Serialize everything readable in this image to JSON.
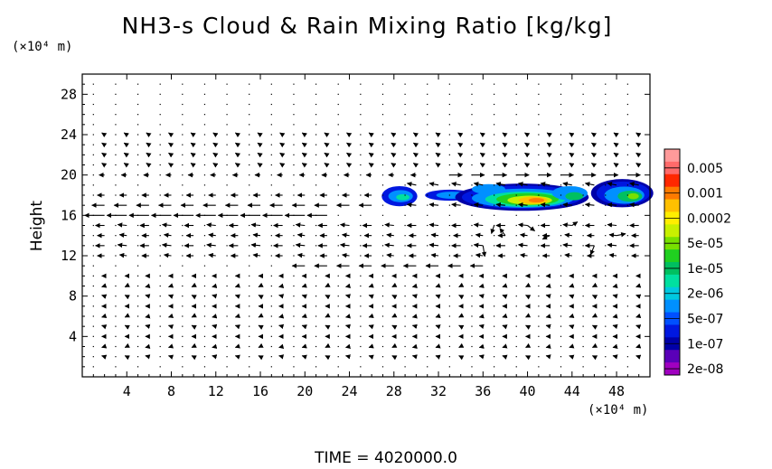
{
  "chart_data": {
    "type": "heatmap",
    "title": "NH3-s Cloud & Rain Mixing Ratio [kg/kg]",
    "ylabel": "Height",
    "y_unit": "(×10⁴ m)",
    "x_unit": "(×10⁴ m)",
    "xlim": [
      0,
      51
    ],
    "ylim": [
      0,
      30
    ],
    "x_ticks": [
      "4",
      "8",
      "12",
      "16",
      "20",
      "24",
      "28",
      "32",
      "36",
      "40",
      "44",
      "48"
    ],
    "y_ticks": [
      "4",
      "8",
      "12",
      "16",
      "20",
      "24",
      "28"
    ],
    "colorbar": {
      "labels": [
        "0.005",
        "0.001",
        "0.0002",
        "5e-05",
        "1e-05",
        "2e-06",
        "5e-07",
        "1e-07",
        "2e-08"
      ],
      "colors": [
        "#ff9a9a",
        "#ff6a6a",
        "#ff2800",
        "#ff7a00",
        "#ffc000",
        "#ffee00",
        "#c8f000",
        "#78e000",
        "#20d020",
        "#00c060",
        "#00e0a0",
        "#00c8e0",
        "#0090ff",
        "#0050ff",
        "#0018e0",
        "#0000a8",
        "#5a00b8",
        "#a000c0"
      ]
    },
    "cloud_regions": [
      {
        "x_range": [
          27,
          30
        ],
        "y_range": [
          16.9,
          18.9
        ],
        "max_level": "5e-07"
      },
      {
        "x_range": [
          31,
          35
        ],
        "y_range": [
          17.5,
          18.5
        ],
        "max_level": "5e-07"
      },
      {
        "x_range": [
          34,
          46
        ],
        "y_range": [
          16.5,
          19.2
        ],
        "max_level": "0.0002"
      },
      {
        "x_range": [
          46,
          51
        ],
        "y_range": [
          16.8,
          19.7
        ],
        "max_level": "1e-05"
      }
    ],
    "wind_bands": [
      {
        "y": 16,
        "x_range": [
          1,
          22
        ],
        "direction": "west",
        "speed": "strong"
      },
      {
        "y": 17,
        "x_range": [
          1,
          27
        ],
        "direction": "west",
        "speed": "moderate"
      },
      {
        "y": 11,
        "x_range": [
          20,
          36
        ],
        "direction": "west",
        "speed": "moderate"
      },
      {
        "y": 20,
        "x_range": [
          33,
          50
        ],
        "direction": "east",
        "speed": "moderate"
      }
    ]
  },
  "time_label": "TIME  =  4020000.0"
}
